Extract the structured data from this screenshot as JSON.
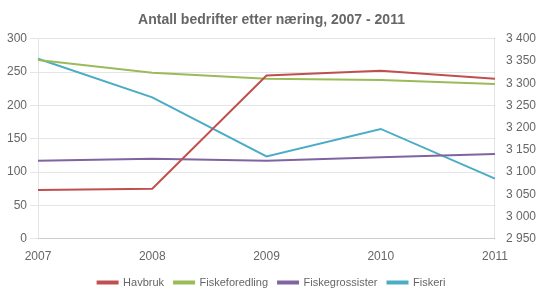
{
  "chart_data": {
    "type": "line",
    "title": "Antall bedrifter etter næring, 2007 - 2011",
    "categories": [
      "2007",
      "2008",
      "2009",
      "2010",
      "2011"
    ],
    "series": [
      {
        "name": "Havbruk",
        "color": "#c0504d",
        "values": [
          73,
          75,
          245,
          252,
          240
        ]
      },
      {
        "name": "Fiskeforedling",
        "color": "#9bbb59",
        "values": [
          268,
          249,
          240,
          238,
          232
        ]
      },
      {
        "name": "Fiskegrossister",
        "color": "#8064a2",
        "values": [
          117,
          120,
          117,
          122,
          127
        ]
      },
      {
        "name": "Fiskeri",
        "color": "#4bacc6",
        "values": [
          3355,
          3268,
          3135,
          3197,
          3085
        ],
        "axis": "y2"
      }
    ],
    "ylim": [
      0,
      300
    ],
    "yticks": [
      0,
      50,
      100,
      150,
      200,
      250,
      300
    ],
    "y2lim": [
      2950,
      3400
    ],
    "y2ticks": [
      {
        "value": 2950,
        "label": "2 950"
      },
      {
        "value": 3000,
        "label": "3 000"
      },
      {
        "value": 3050,
        "label": "3 050"
      },
      {
        "value": 3100,
        "label": "3 100"
      },
      {
        "value": 3150,
        "label": "3 150"
      },
      {
        "value": 3200,
        "label": "3 200"
      },
      {
        "value": 3250,
        "label": "3 250"
      },
      {
        "value": 3300,
        "label": "3 300"
      },
      {
        "value": 3350,
        "label": "3 350"
      },
      {
        "value": 3400,
        "label": "3 400"
      }
    ],
    "grid": true,
    "legend": "bottom"
  }
}
